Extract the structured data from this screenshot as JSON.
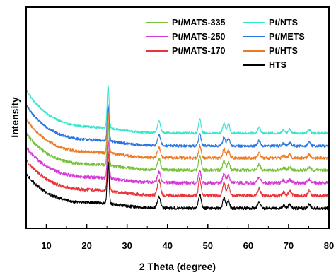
{
  "chart_data": {
    "type": "line",
    "xlabel": "2 Theta (degree)",
    "ylabel": "Intensity",
    "xlim": [
      5,
      80
    ],
    "x_ticks": [
      10,
      20,
      30,
      40,
      50,
      60,
      70,
      80
    ],
    "y_ticks_shown": false,
    "grid": false,
    "legend_placement": "top-right",
    "peaks_2theta": [
      25.3,
      37.9,
      48.0,
      54.0,
      55.1,
      62.7,
      68.8,
      70.3,
      75.1
    ],
    "series": [
      {
        "name": "Pt/NTS",
        "color": "#33e6cc",
        "offset": 6.0,
        "start": 3.6,
        "floor": 0.2,
        "peak_heights": [
          3.4,
          0.9,
          1.1,
          0.8,
          0.7,
          0.45,
          0.25,
          0.3,
          0.3
        ],
        "noise": 0.09
      },
      {
        "name": "Pt/METS",
        "color": "#2b75e0",
        "offset": 5.0,
        "start": 3.4,
        "floor": 0.2,
        "peak_heights": [
          2.8,
          0.8,
          0.95,
          0.7,
          0.6,
          0.4,
          0.2,
          0.25,
          0.25
        ],
        "noise": 0.11
      },
      {
        "name": "Pt/HTS",
        "color": "#ee7a22",
        "offset": 4.0,
        "start": 3.3,
        "floor": 0.25,
        "peak_heights": [
          3.2,
          0.8,
          0.95,
          0.7,
          0.6,
          0.4,
          0.2,
          0.25,
          0.25
        ],
        "noise": 0.12
      },
      {
        "name": "Pt/MATS-335",
        "color": "#77c23a",
        "offset": 3.0,
        "start": 3.2,
        "floor": 0.3,
        "peak_heights": [
          3.2,
          0.85,
          1.1,
          0.75,
          0.6,
          0.45,
          0.2,
          0.25,
          0.25
        ],
        "noise": 0.12
      },
      {
        "name": "Pt/MATS-250",
        "color": "#d43ad4",
        "offset": 2.0,
        "start": 3.1,
        "floor": 0.3,
        "peak_heights": [
          3.0,
          0.8,
          0.95,
          0.7,
          0.6,
          0.4,
          0.2,
          0.25,
          0.25
        ],
        "noise": 0.13
      },
      {
        "name": "Pt/MATS-170",
        "color": "#e8343a",
        "offset": 1.0,
        "start": 3.1,
        "floor": 0.3,
        "peak_heights": [
          3.0,
          1.2,
          1.3,
          1.0,
          0.8,
          0.55,
          0.25,
          0.35,
          0.35
        ],
        "noise": 0.13
      },
      {
        "name": "HTS",
        "color": "#000000",
        "offset": 0.0,
        "start": 3.0,
        "floor": 0.3,
        "peak_heights": [
          3.2,
          0.9,
          1.1,
          0.8,
          0.6,
          0.45,
          0.2,
          0.3,
          0.3
        ],
        "noise": 0.12
      }
    ],
    "legend_columns": [
      [
        "Pt/MATS-335",
        "Pt/MATS-250",
        "Pt/MATS-170"
      ],
      [
        "Pt/NTS",
        "Pt/METS",
        "Pt/HTS",
        "HTS"
      ]
    ]
  }
}
